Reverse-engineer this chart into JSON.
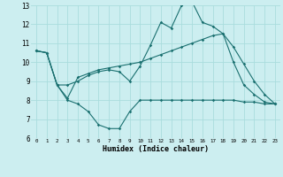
{
  "xlabel": "Humidex (Indice chaleur)",
  "background_color": "#cceef0",
  "grid_color": "#aadddd",
  "line_color": "#1a7070",
  "xlim": [
    -0.5,
    23.5
  ],
  "ylim": [
    6,
    13
  ],
  "line1_x": [
    0,
    1,
    2,
    3,
    4,
    5,
    6,
    7,
    8,
    9,
    10,
    11,
    12,
    13,
    14,
    15,
    16,
    17,
    18,
    19,
    20,
    21,
    22,
    23
  ],
  "line1_y": [
    10.6,
    10.5,
    8.8,
    8.8,
    9.0,
    9.3,
    9.5,
    9.6,
    9.5,
    9.0,
    9.8,
    10.9,
    12.1,
    11.8,
    13.0,
    13.2,
    12.1,
    11.9,
    11.5,
    10.0,
    8.8,
    8.3,
    7.9,
    7.8
  ],
  "line2_x": [
    0,
    1,
    2,
    3,
    4,
    5,
    6,
    7,
    8,
    9,
    10,
    11,
    12,
    13,
    14,
    15,
    16,
    17,
    18,
    19,
    20,
    21,
    22,
    23
  ],
  "line2_y": [
    10.6,
    10.5,
    8.8,
    8.1,
    9.2,
    9.4,
    9.6,
    9.7,
    9.8,
    9.9,
    10.0,
    10.2,
    10.4,
    10.6,
    10.8,
    11.0,
    11.2,
    11.4,
    11.5,
    10.8,
    9.9,
    9.0,
    8.3,
    7.8
  ],
  "line3_x": [
    0,
    1,
    2,
    3,
    4,
    5,
    6,
    7,
    8,
    9,
    10,
    11,
    12,
    13,
    14,
    15,
    16,
    17,
    18,
    19,
    20,
    21,
    22,
    23
  ],
  "line3_y": [
    10.6,
    10.5,
    8.8,
    8.0,
    7.8,
    7.4,
    6.7,
    6.5,
    6.5,
    7.4,
    8.0,
    8.0,
    8.0,
    8.0,
    8.0,
    8.0,
    8.0,
    8.0,
    8.0,
    8.0,
    7.9,
    7.9,
    7.8,
    7.8
  ],
  "yticks": [
    6,
    7,
    8,
    9,
    10,
    11,
    12,
    13
  ],
  "xticks": [
    0,
    1,
    2,
    3,
    4,
    5,
    6,
    7,
    8,
    9,
    10,
    11,
    12,
    13,
    14,
    15,
    16,
    17,
    18,
    19,
    20,
    21,
    22,
    23
  ]
}
